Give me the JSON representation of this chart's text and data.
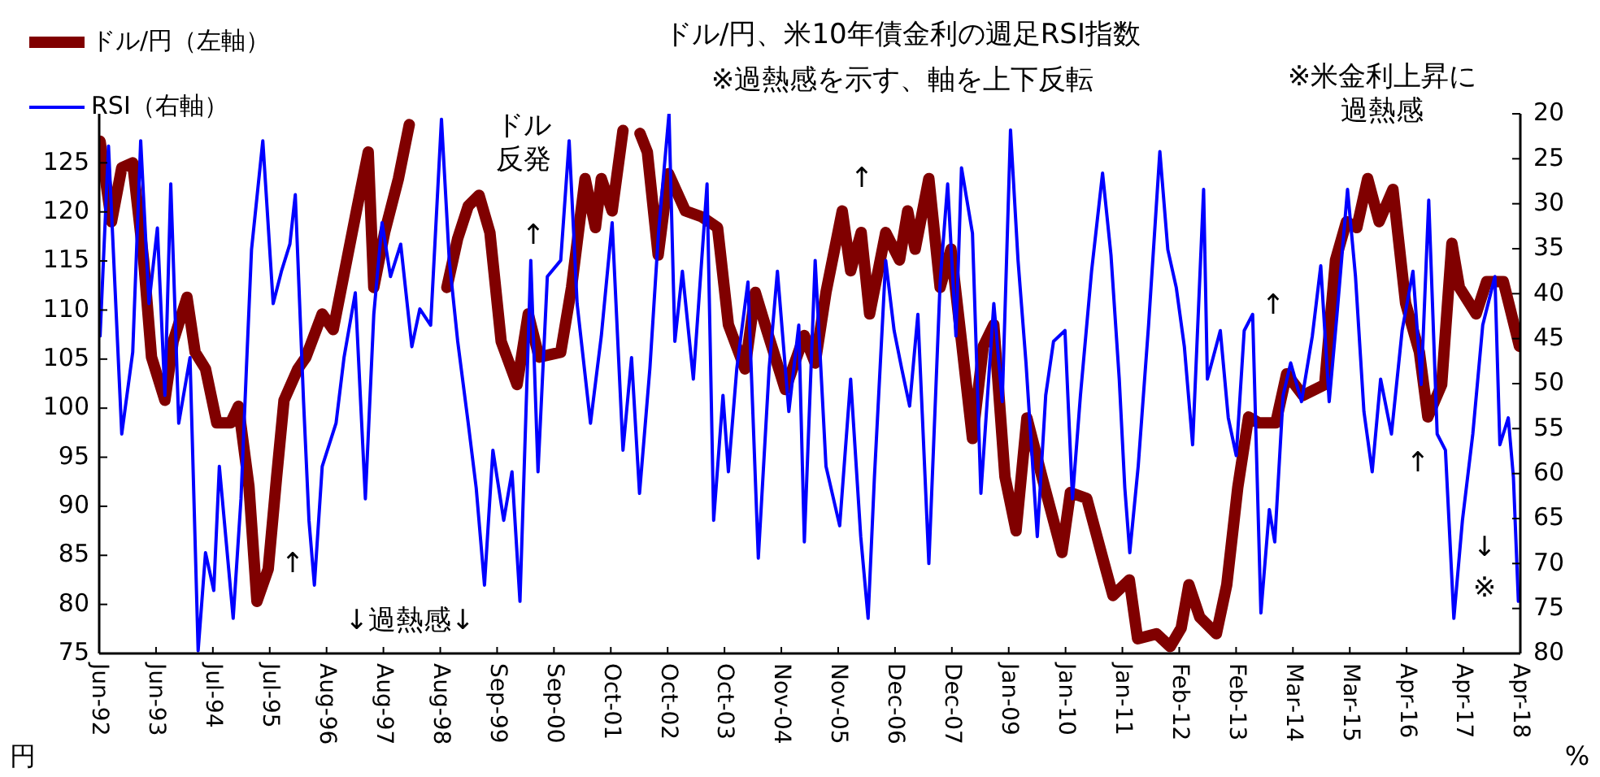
{
  "chart_data": {
    "type": "line",
    "title": "ドル/円、米10年債金利の週足RSI指数",
    "subtitle": "※過熱感を示す、軸を上下反転",
    "ylabel": "円",
    "y2label": "%",
    "legend": "top left",
    "xlim": [
      "1992-06-12",
      "2018-04-27"
    ],
    "xticks": [
      {
        "value": "1992-06-12",
        "label": "Jun-92"
      },
      {
        "value": "1993-06-25",
        "label": "Jun-93"
      },
      {
        "value": "1994-07-08",
        "label": "Jul-94"
      },
      {
        "value": "1995-07-21",
        "label": "Jul-95"
      },
      {
        "value": "1996-08-02",
        "label": "Aug-96"
      },
      {
        "value": "1997-08-15",
        "label": "Aug-97"
      },
      {
        "value": "1998-08-28",
        "label": "Aug-98"
      },
      {
        "value": "1999-09-10",
        "label": "Sep-99"
      },
      {
        "value": "2000-09-22",
        "label": "Sep-00"
      },
      {
        "value": "2001-10-05",
        "label": "Oct-01"
      },
      {
        "value": "2002-10-18",
        "label": "Oct-02"
      },
      {
        "value": "2003-10-31",
        "label": "Oct-03"
      },
      {
        "value": "2004-11-12",
        "label": "Nov-04"
      },
      {
        "value": "2005-11-25",
        "label": "Nov-05"
      },
      {
        "value": "2006-12-08",
        "label": "Dec-06"
      },
      {
        "value": "2007-12-21",
        "label": "Dec-07"
      },
      {
        "value": "2009-01-02",
        "label": "Jan-09"
      },
      {
        "value": "2010-01-15",
        "label": "Jan-10"
      },
      {
        "value": "2011-01-28",
        "label": "Jan-11"
      },
      {
        "value": "2012-02-10",
        "label": "Feb-12"
      },
      {
        "value": "2013-02-22",
        "label": "Feb-13"
      },
      {
        "value": "2014-03-07",
        "label": "Mar-14"
      },
      {
        "value": "2015-03-20",
        "label": "Mar-15"
      },
      {
        "value": "2016-04-01",
        "label": "Apr-16"
      },
      {
        "value": "2017-04-14",
        "label": "Apr-17"
      },
      {
        "value": "2018-04-27",
        "label": "Apr-18"
      }
    ],
    "ylim": [
      75,
      130
    ],
    "yticks": [
      75,
      80,
      85,
      90,
      95,
      100,
      105,
      110,
      115,
      120,
      125
    ],
    "y2lim": [
      80,
      20
    ],
    "y2ticks": [
      20,
      25,
      30,
      35,
      40,
      45,
      50,
      55,
      60,
      65,
      70,
      75,
      80
    ],
    "series": [
      {
        "name": "ドル/円（左軸）",
        "color": "#800000",
        "x": [
          "1992-06-18",
          "1992-09-02",
          "1992-11-09",
          "1993-01-21",
          "1993-04-04",
          "1993-05-26",
          "1993-08-23",
          "1993-10-17",
          "1994-01-17",
          "1994-03-12",
          "1994-05-20",
          "1994-08-03",
          "1994-11-03",
          "1994-12-25",
          "1995-03-05",
          "1995-04-27",
          "1995-07-11",
          "1995-09-05",
          "1995-10-24",
          "1996-01-24",
          "1996-03-18",
          "1996-07-04",
          "1996-09-15",
          "1996-11-23",
          "1997-02-23",
          "1997-05-06",
          "1997-06-12",
          "1997-08-23",
          "1997-11-23",
          "1998-02-03",
          "1998-03-08",
          "1998-07-01",
          "1998-09-18",
          "1998-10-11",
          "1998-12-22",
          "1999-03-02",
          "1999-05-13",
          "1999-07-24",
          "1999-10-07",
          "2000-01-21",
          "2000-04-04",
          "2000-06-15",
          "2000-11-06",
          "2001-01-17",
          "2001-04-17",
          "2001-06-25",
          "2001-08-03",
          "2001-10-14",
          "2001-12-25",
          "2002-02-20",
          "2002-04-17",
          "2002-06-05",
          "2002-08-16",
          "2002-10-24",
          "2003-02-13",
          "2003-06-02",
          "2003-09-15",
          "2003-11-26",
          "2004-03-15",
          "2004-05-23",
          "2004-08-06",
          "2004-12-08",
          "2005-04-14",
          "2005-06-25",
          "2005-09-05",
          "2005-12-22",
          "2006-02-16",
          "2006-04-27",
          "2006-06-22",
          "2006-10-07",
          "2007-01-07",
          "2007-03-02",
          "2007-04-21",
          "2007-07-21",
          "2007-10-04",
          "2007-12-15",
          "2008-02-23",
          "2008-05-06",
          "2008-07-17",
          "2008-09-25",
          "2008-12-08",
          "2009-02-20",
          "2009-05-03",
          "2009-08-16",
          "2009-12-22",
          "2010-02-16",
          "2010-06-05",
          "2010-09-18",
          "2010-11-26",
          "2011-03-15",
          "2011-05-09",
          "2011-09-12",
          "2011-12-12",
          "2012-02-23",
          "2012-04-14",
          "2012-06-25",
          "2012-10-14",
          "2012-12-22",
          "2013-03-05",
          "2013-05-16",
          "2013-07-24",
          "2013-11-13",
          "2014-01-24",
          "2014-05-13",
          "2014-10-04",
          "2014-12-15",
          "2015-02-26",
          "2015-05-06",
          "2015-07-17",
          "2015-10-01",
          "2016-01-01",
          "2016-03-25",
          "2016-06-25",
          "2016-08-20",
          "2016-11-20",
          "2017-01-27",
          "2017-03-18",
          "2017-07-07",
          "2017-09-15",
          "2018-01-04",
          "2018-02-09",
          "2018-04-21"
        ],
        "values": [
          127.2,
          119,
          124.5,
          125,
          115,
          105.2,
          100.8,
          106.8,
          111.3,
          105.7,
          104,
          98.5,
          98.5,
          100.2,
          92,
          80.3,
          83.6,
          93,
          100.8,
          104,
          105.2,
          109.6,
          108,
          113.4,
          120.6,
          126.1,
          112.3,
          117.9,
          123.4,
          128.9,
          null,
          null,
          null,
          112.3,
          117.3,
          120.6,
          121.7,
          117.9,
          106.8,
          102.4,
          109.6,
          105.2,
          105.7,
          112.3,
          123.4,
          118.4,
          123.4,
          120.1,
          128.3,
          null,
          128,
          126.1,
          115.6,
          123.9,
          120.1,
          119.5,
          118.4,
          108.5,
          104,
          111.8,
          108,
          101.9,
          107.4,
          104.6,
          111.8,
          120.1,
          114,
          117.9,
          109.6,
          117.9,
          115.1,
          120.1,
          116.2,
          123.4,
          112.3,
          116.2,
          106.8,
          96.9,
          106.3,
          108.5,
          93,
          87.5,
          99,
          92.7,
          85.3,
          91.4,
          90.8,
          84.8,
          80.9,
          82.5,
          76.5,
          77,
          75.7,
          77.6,
          82,
          78.7,
          77,
          82,
          91.9,
          99.1,
          98.5,
          98.5,
          103.5,
          101.3,
          102.4,
          115.1,
          119,
          118.4,
          123.4,
          119,
          122.3,
          110.7,
          105.7,
          99.1,
          102.4,
          116.8,
          112.3,
          109.6,
          112.9,
          112.9,
          110.7,
          106.3
        ]
      },
      {
        "name": "RSI（右軸）",
        "color": "#0000ff",
        "axis": "y2",
        "x": [
          "1992-06-18",
          "1992-08-13",
          "1992-11-09",
          "1993-01-21",
          "1993-03-15",
          "1993-05-09",
          "1993-07-04",
          "1993-08-23",
          "1993-10-01",
          "1993-11-23",
          "1994-02-06",
          "1994-04-01",
          "1994-05-20",
          "1994-07-14",
          "1994-08-20",
          "1994-11-20",
          "1995-01-11",
          "1995-02-16",
          "1995-03-22",
          "1995-06-05",
          "1995-08-13",
          "1995-10-07",
          "1995-12-02",
          "1996-01-07",
          "1996-03-02",
          "1996-04-07",
          "1996-05-13",
          "1996-07-04",
          "1996-10-04",
          "1996-11-26",
          "1997-02-09",
          "1997-04-17",
          "1997-06-12",
          "1997-08-06",
          "1997-10-01",
          "1997-12-08",
          "1998-02-20",
          "1998-04-14",
          "1998-06-25",
          "1998-09-05",
          "1998-10-27",
          "1998-12-22",
          "1999-03-02",
          "1999-04-24",
          "1999-06-18",
          "1999-08-13",
          "1999-10-24",
          "1999-12-18",
          "2000-02-09",
          "2000-04-21",
          "2000-06-08",
          "2000-08-09",
          "2000-11-06",
          "2001-01-01",
          "2001-02-23",
          "2001-05-23",
          "2001-08-03",
          "2001-10-14",
          "2001-12-25",
          "2002-02-20",
          "2002-04-14",
          "2002-06-22",
          "2002-08-18",
          "2002-10-27",
          "2002-12-05",
          "2003-01-24",
          "2003-04-07",
          "2003-07-07",
          "2003-08-20",
          "2003-10-21",
          "2003-11-26",
          "2004-01-21",
          "2004-04-04",
          "2004-06-12",
          "2004-08-23",
          "2004-10-17",
          "2005-01-01",
          "2005-03-08",
          "2005-04-14",
          "2005-06-25",
          "2005-09-05",
          "2005-12-05",
          "2006-02-16",
          "2006-04-24",
          "2006-06-12",
          "2006-07-24",
          "2006-10-07",
          "2006-12-02",
          "2007-01-21",
          "2007-03-15",
          "2007-05-09",
          "2007-07-21",
          "2007-10-04",
          "2007-11-23",
          "2008-01-17",
          "2008-02-23",
          "2008-05-06",
          "2008-07-01",
          "2008-09-25",
          "2008-11-20",
          "2009-01-14",
          "2009-03-05",
          "2009-04-27",
          "2009-07-11",
          "2009-09-05",
          "2009-10-27",
          "2010-01-11",
          "2010-03-02",
          "2010-04-24",
          "2010-07-07",
          "2010-09-18",
          "2010-11-13",
          "2011-01-07",
          "2011-02-13",
          "2011-03-18",
          "2011-05-13",
          "2011-07-21",
          "2011-10-04",
          "2011-11-26",
          "2012-01-21",
          "2012-03-15",
          "2012-05-09",
          "2012-07-21",
          "2012-08-15",
          "2012-11-09",
          "2013-01-01",
          "2013-02-23",
          "2013-04-17",
          "2013-06-12",
          "2013-08-06",
          "2013-10-01",
          "2013-11-06",
          "2014-01-01",
          "2014-02-20",
          "2014-05-03",
          "2014-07-14",
          "2014-09-08",
          "2014-11-03",
          "2014-12-25",
          "2015-03-05",
          "2015-04-27",
          "2015-06-22",
          "2015-08-16",
          "2015-10-11",
          "2015-12-22",
          "2016-03-02",
          "2016-05-13",
          "2016-07-07",
          "2016-08-26",
          "2016-10-21",
          "2016-12-15",
          "2017-02-09",
          "2017-04-07",
          "2017-06-15",
          "2017-08-20",
          "2017-11-09",
          "2017-12-12",
          "2018-02-06",
          "2018-03-12",
          "2018-04-14"
        ],
        "values": [
          44.7,
          23.6,
          55.6,
          46.5,
          23,
          41.1,
          32.7,
          51.3,
          27.8,
          54.4,
          47.1,
          79.7,
          68.8,
          73,
          59.2,
          76.1,
          62.8,
          48.3,
          35.1,
          23,
          41.1,
          37.5,
          34.5,
          29,
          52,
          65.2,
          72.4,
          59.2,
          54.4,
          47.1,
          39.9,
          62.8,
          42.3,
          32.1,
          38.1,
          34.5,
          45.9,
          41.7,
          43.5,
          20.6,
          36.3,
          45.3,
          54.4,
          61.6,
          72.4,
          57.4,
          65.2,
          59.8,
          74.2,
          36.3,
          59.8,
          38.1,
          36.3,
          23,
          41.1,
          54.4,
          44.7,
          32.1,
          57.4,
          47.1,
          62.2,
          48.3,
          33.3,
          20,
          45.3,
          37.5,
          49.5,
          27.8,
          65.2,
          51.3,
          59.8,
          48.3,
          38.7,
          69.4,
          48.3,
          37.5,
          53.1,
          43.5,
          67.6,
          36.3,
          59.2,
          65.8,
          49.5,
          67,
          76.1,
          60.4,
          36.3,
          44.1,
          48.3,
          52.5,
          42.3,
          70,
          38.7,
          27.8,
          44.7,
          26,
          33.3,
          62.2,
          41.1,
          52,
          21.8,
          36.3,
          47.7,
          67,
          51.3,
          45.3,
          44.1,
          62.8,
          51.3,
          37.5,
          26.6,
          35.7,
          49.5,
          61.6,
          68.8,
          59.2,
          43.5,
          24.2,
          35.1,
          39.3,
          45.9,
          56.8,
          28.4,
          49.5,
          44.1,
          53.8,
          58,
          44.1,
          42.3,
          75.5,
          64,
          67.6,
          51.3,
          47.7,
          52,
          44.7,
          36.9,
          52,
          42.3,
          28.4,
          38.1,
          53.1,
          59.8,
          49.5,
          55.6,
          44.1,
          37.5,
          50.1,
          29.6,
          55.6,
          57.4,
          76.1,
          65.2,
          55.6,
          43.5,
          38.1,
          56.8,
          53.8,
          60.4,
          74.2
        ]
      }
    ],
    "annotations": [
      "↑",
      "↓過熱感↓",
      "ドル反発",
      "↑",
      "↑",
      "↑",
      "↑",
      "↓",
      "※",
      "※米金利上昇に過熱感"
    ]
  }
}
